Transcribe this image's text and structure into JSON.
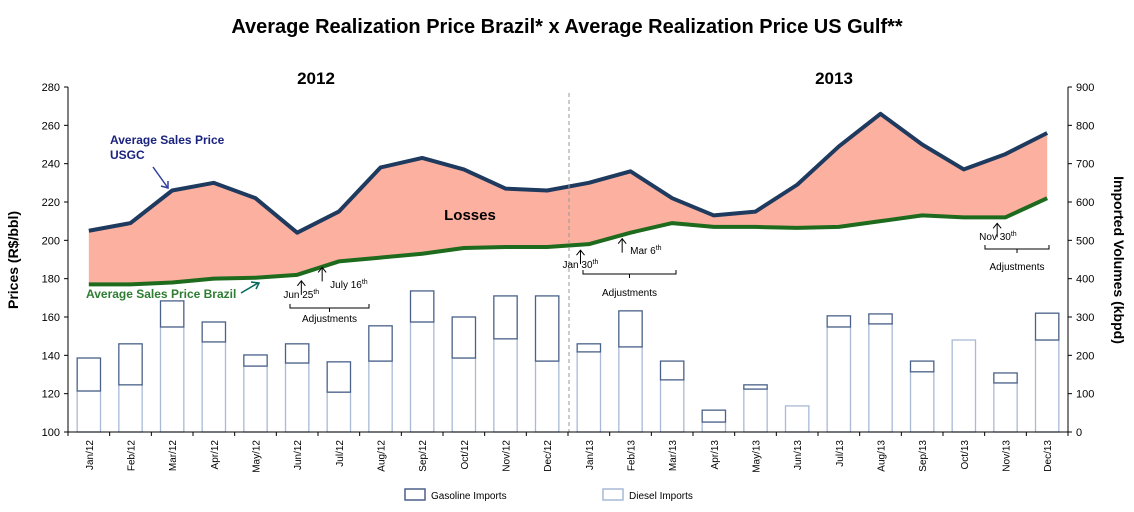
{
  "chart_data": {
    "type": "line+bar",
    "title": "Average Realization Price Brazil* x Average Realization Price US Gulf**",
    "year_labels": [
      "2012",
      "2013"
    ],
    "ylabel": "Prices (R$/bbl)",
    "y2label": "Imported Volumes (kbpd)",
    "ylim": [
      100,
      280
    ],
    "y2lim": [
      0,
      900
    ],
    "yticks": [
      100,
      120,
      140,
      160,
      180,
      200,
      220,
      240,
      260,
      280
    ],
    "y2ticks": [
      0,
      100,
      200,
      300,
      400,
      500,
      600,
      700,
      800,
      900
    ],
    "categories": [
      "Jan/12",
      "Feb/12",
      "Mar/12",
      "Apr/12",
      "May/12",
      "Jun/12",
      "Jul/12",
      "Aug/12",
      "Sep/12",
      "Oct/12",
      "Nov/12",
      "Dec/12",
      "Jan/13",
      "Feb/13",
      "Mar/13",
      "Apr/13",
      "May/13",
      "Jun/13",
      "Jul/13",
      "Aug/13",
      "Sep/13",
      "Oct/13",
      "Nov/13",
      "Dec/13"
    ],
    "series": [
      {
        "name": "Average Sales Price USGC",
        "type": "line",
        "axis": "left",
        "color": "#1f3a5f",
        "values": [
          205,
          209,
          226,
          230,
          222,
          204,
          215,
          238,
          243,
          237,
          227,
          226,
          230,
          236,
          222,
          213,
          215,
          229,
          249,
          266,
          250,
          237,
          245,
          256
        ]
      },
      {
        "name": "Average Sales Price Brazil",
        "type": "line",
        "axis": "left",
        "color": "#1e6b1e",
        "values": [
          177,
          177,
          178,
          180,
          180.5,
          182,
          189,
          191,
          193,
          196,
          196.5,
          196.5,
          198,
          204,
          209,
          207,
          207,
          206.5,
          207,
          210,
          213,
          212,
          212,
          222
        ]
      },
      {
        "name": "Diesel Imports",
        "type": "bar",
        "axis": "right",
        "stack": "imports",
        "color": "#a9b9d6",
        "values": [
          107,
          123,
          274,
          235,
          172,
          180,
          104,
          185,
          287,
          193,
          243,
          185,
          209,
          222,
          136,
          26,
          112,
          68,
          274,
          282,
          157,
          240,
          128,
          240
        ]
      },
      {
        "name": "Gasoline Imports",
        "type": "bar",
        "axis": "right",
        "stack": "imports",
        "color": "#4a6189",
        "values": [
          86,
          107,
          68,
          52,
          29,
          50,
          79,
          92,
          81,
          107,
          112,
          170,
          21,
          94,
          49,
          31,
          11,
          0,
          29,
          26,
          28,
          0,
          26,
          70
        ]
      }
    ],
    "area_label": "Losses",
    "line_labels": {
      "usgc": [
        "Average Sales Price",
        "USGC"
      ],
      "brazil": "Average Sales Price Brazil"
    },
    "annotations": [
      {
        "text": "Jun 25",
        "sup": "th",
        "month_index": 5.6
      },
      {
        "text": "July 16",
        "sup": "th",
        "month_index": 6.1
      },
      {
        "text": "Jan 30",
        "sup": "th",
        "month_index": 12.3
      },
      {
        "text": "Mar 6",
        "sup": "th",
        "month_index": 13.3
      },
      {
        "text": "Nov 30",
        "sup": "th",
        "month_index": 22.3
      }
    ],
    "bracket_label": "Adjustments",
    "legend": [
      "Gasoline Imports",
      "Diesel Imports"
    ],
    "legend_placement": "bottom"
  }
}
